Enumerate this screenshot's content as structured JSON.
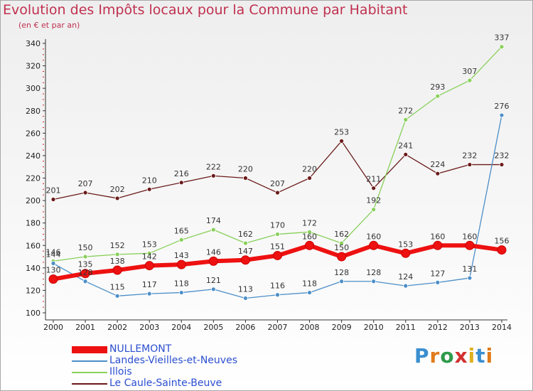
{
  "header": {
    "title": "Evolution des Impôts locaux pour la Commune par Habitant",
    "subtitle": "(en € et par an)"
  },
  "logo": {
    "text": "Proxiti",
    "colors": [
      "#3a8fd0",
      "#e07b1c",
      "#2f9a4a",
      "#d23030",
      "#e0b020",
      "#3a8fd0",
      "#e07b1c"
    ]
  },
  "chart_data": {
    "type": "line",
    "title": "Evolution des Impôts locaux pour la Commune par Habitant",
    "subtitle": "(en € et par an)",
    "xlabel": "",
    "ylabel": "",
    "x": [
      2000,
      2001,
      2002,
      2003,
      2004,
      2005,
      2006,
      2007,
      2008,
      2009,
      2010,
      2011,
      2012,
      2013,
      2014
    ],
    "ylim": [
      100,
      340
    ],
    "yticks": [
      100,
      120,
      140,
      160,
      180,
      200,
      220,
      240,
      260,
      280,
      300,
      320,
      340
    ],
    "grid": false,
    "legend_position": "bottom-left",
    "series": [
      {
        "name": "NULLEMONT",
        "color": "#ee1111",
        "width": "thick",
        "values": [
          130,
          135,
          138,
          142,
          143,
          146,
          147,
          151,
          160,
          150,
          160,
          153,
          160,
          160,
          156
        ]
      },
      {
        "name": "Landes-Vieilles-et-Neuves",
        "color": "#4b8ec8",
        "width": "thin",
        "values": [
          144,
          128,
          115,
          117,
          118,
          121,
          113,
          116,
          118,
          128,
          128,
          124,
          127,
          131,
          276
        ]
      },
      {
        "name": "Illois",
        "color": "#88d05a",
        "width": "thin",
        "values": [
          146,
          150,
          152,
          153,
          165,
          174,
          162,
          170,
          172,
          162,
          192,
          272,
          293,
          307,
          337
        ]
      },
      {
        "name": "Le Caule-Sainte-Beuve",
        "color": "#6b1a1a",
        "width": "thin",
        "values": [
          201,
          207,
          202,
          210,
          216,
          222,
          220,
          207,
          220,
          253,
          211,
          241,
          224,
          232,
          232
        ]
      }
    ]
  }
}
